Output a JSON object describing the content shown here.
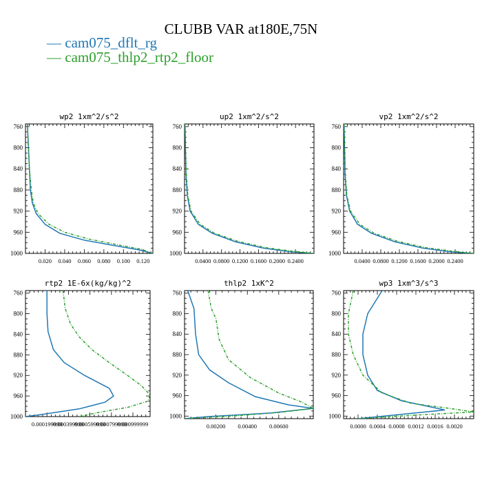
{
  "title": "CLUBB VAR at180E,75N",
  "legend": [
    {
      "label": "cam075_dflt_rg",
      "color": "#1f77b4"
    },
    {
      "label": "cam075_thlp2_rtp2_floor",
      "color": "#2ca02c"
    }
  ],
  "chart_data": [
    {
      "type": "line",
      "title": "wp2   1xm^2/s^2",
      "ylim": [
        1000,
        755
      ],
      "xlim": [
        0,
        0.13
      ],
      "yticks": [
        760,
        800,
        840,
        880,
        920,
        960,
        1000
      ],
      "xticks": [
        0.02,
        0.04,
        0.06,
        0.08,
        0.1,
        0.12
      ],
      "xtick_labels": [
        "0.020",
        "0.040",
        "0.060",
        "0.080",
        "0.100",
        "0.120"
      ],
      "series": [
        {
          "name": "cam075_dflt_rg",
          "points": [
            [
              0.002,
              755
            ],
            [
              0.003,
              800
            ],
            [
              0.004,
              840
            ],
            [
              0.005,
              880
            ],
            [
              0.007,
              905
            ],
            [
              0.011,
              925
            ],
            [
              0.02,
              945
            ],
            [
              0.035,
              962
            ],
            [
              0.06,
              975
            ],
            [
              0.09,
              985
            ],
            [
              0.115,
              993
            ],
            [
              0.13,
              1000
            ]
          ]
        },
        {
          "name": "cam075_thlp2_rtp2_floor",
          "points": [
            [
              0.002,
              755
            ],
            [
              0.003,
              800
            ],
            [
              0.004,
              840
            ],
            [
              0.006,
              880
            ],
            [
              0.008,
              905
            ],
            [
              0.013,
              925
            ],
            [
              0.024,
              945
            ],
            [
              0.04,
              960
            ],
            [
              0.065,
              973
            ],
            [
              0.095,
              984
            ],
            [
              0.118,
              992
            ],
            [
              0.13,
              1000
            ]
          ]
        }
      ]
    },
    {
      "type": "line",
      "title": "up2   1xm^2/s^2",
      "ylim": [
        1000,
        755
      ],
      "xlim": [
        0,
        0.28
      ],
      "yticks": [
        760,
        800,
        840,
        880,
        920,
        960,
        1000
      ],
      "xticks": [
        0.04,
        0.08,
        0.12,
        0.16,
        0.2,
        0.24
      ],
      "xtick_labels": [
        "0.0400",
        "0.0800",
        "0.1200",
        "0.1600",
        "0.2000",
        "0.2400"
      ],
      "series": [
        {
          "name": "cam075_dflt_rg",
          "points": [
            [
              0.001,
              755
            ],
            [
              0.002,
              800
            ],
            [
              0.003,
              850
            ],
            [
              0.006,
              890
            ],
            [
              0.012,
              920
            ],
            [
              0.03,
              945
            ],
            [
              0.06,
              962
            ],
            [
              0.11,
              978
            ],
            [
              0.17,
              990
            ],
            [
              0.23,
              997
            ],
            [
              0.28,
              1000
            ]
          ]
        },
        {
          "name": "cam075_thlp2_rtp2_floor",
          "points": [
            [
              0.001,
              755
            ],
            [
              0.002,
              800
            ],
            [
              0.004,
              850
            ],
            [
              0.007,
              890
            ],
            [
              0.014,
              920
            ],
            [
              0.034,
              945
            ],
            [
              0.065,
              962
            ],
            [
              0.115,
              977
            ],
            [
              0.175,
              989
            ],
            [
              0.235,
              996
            ],
            [
              0.28,
              1000
            ]
          ]
        }
      ]
    },
    {
      "type": "line",
      "title": "vp2   1xm^2/s^2",
      "ylim": [
        1000,
        755
      ],
      "xlim": [
        0,
        0.28
      ],
      "yticks": [
        760,
        800,
        840,
        880,
        920,
        960,
        1000
      ],
      "xticks": [
        0.04,
        0.08,
        0.12,
        0.16,
        0.2,
        0.24
      ],
      "xtick_labels": [
        "0.0400",
        "0.0800",
        "0.1200",
        "0.1600",
        "0.2000",
        "0.2400"
      ],
      "series": [
        {
          "name": "cam075_dflt_rg",
          "points": [
            [
              0.001,
              755
            ],
            [
              0.002,
              800
            ],
            [
              0.003,
              850
            ],
            [
              0.006,
              890
            ],
            [
              0.013,
              920
            ],
            [
              0.03,
              945
            ],
            [
              0.06,
              962
            ],
            [
              0.11,
              978
            ],
            [
              0.17,
              990
            ],
            [
              0.23,
              997
            ],
            [
              0.28,
              1000
            ]
          ]
        },
        {
          "name": "cam075_thlp2_rtp2_floor",
          "points": [
            [
              0.001,
              755
            ],
            [
              0.002,
              800
            ],
            [
              0.004,
              850
            ],
            [
              0.007,
              890
            ],
            [
              0.015,
              920
            ],
            [
              0.035,
              945
            ],
            [
              0.066,
              962
            ],
            [
              0.116,
              977
            ],
            [
              0.176,
              989
            ],
            [
              0.236,
              996
            ],
            [
              0.28,
              1000
            ]
          ]
        }
      ]
    },
    {
      "type": "line",
      "title": "rtp2   1E-6x(kg/kg)^2",
      "ylim": [
        1000,
        755
      ],
      "xlim": [
        0,
        0.00116
      ],
      "yticks": [
        760,
        800,
        840,
        880,
        920,
        960,
        1000
      ],
      "xticks": [
        0.0002,
        0.0004,
        0.0006,
        0.0008,
        0.001
      ],
      "xtick_labels": [
        "0.000199999",
        "0.000399999",
        "0.000599999",
        "0.000799999",
        "0.000999999"
      ],
      "series": [
        {
          "name": "cam075_dflt_rg",
          "points": [
            [
              0.0002,
              755
            ],
            [
              0.0002,
              800
            ],
            [
              0.00021,
              835
            ],
            [
              0.00026,
              870
            ],
            [
              0.00036,
              895
            ],
            [
              0.00055,
              920
            ],
            [
              0.00078,
              945
            ],
            [
              0.00082,
              960
            ],
            [
              0.00074,
              972
            ],
            [
              0.0005,
              985
            ],
            [
              0.00015,
              996
            ],
            [
              0.0,
              1000
            ]
          ]
        },
        {
          "name": "cam075_thlp2_rtp2_floor",
          "points": [
            [
              0.00035,
              755
            ],
            [
              0.00037,
              790
            ],
            [
              0.00042,
              820
            ],
            [
              0.0005,
              845
            ],
            [
              0.00062,
              870
            ],
            [
              0.00078,
              895
            ],
            [
              0.00095,
              920
            ],
            [
              0.00108,
              940
            ],
            [
              0.00116,
              958
            ],
            [
              0.00114,
              970
            ],
            [
              0.00095,
              982
            ],
            [
              0.00068,
              992
            ],
            [
              0.0005,
              1000
            ]
          ]
        }
      ]
    },
    {
      "type": "line",
      "title": "thlp2   1xK^2",
      "ylim": [
        1005,
        755
      ],
      "xlim": [
        0,
        0.0082
      ],
      "yticks": [
        760,
        800,
        840,
        880,
        920,
        960,
        1000
      ],
      "xticks": [
        0.002,
        0.004,
        0.006
      ],
      "xtick_labels": [
        "0.00200",
        "0.00400",
        "0.00600"
      ],
      "series": [
        {
          "name": "cam075_dflt_rg",
          "points": [
            [
              0.0002,
              755
            ],
            [
              0.0006,
              790
            ],
            [
              0.0007,
              840
            ],
            [
              0.0009,
              880
            ],
            [
              0.0016,
              910
            ],
            [
              0.0028,
              935
            ],
            [
              0.0045,
              962
            ],
            [
              0.0066,
              978
            ],
            [
              0.0082,
              985
            ],
            [
              0.0055,
              994
            ],
            [
              0.0015,
              1001
            ],
            [
              0.0,
              1005
            ]
          ]
        },
        {
          "name": "cam075_thlp2_rtp2_floor",
          "points": [
            [
              0.0015,
              755
            ],
            [
              0.0017,
              790
            ],
            [
              0.002,
              810
            ],
            [
              0.0022,
              850
            ],
            [
              0.0028,
              890
            ],
            [
              0.0042,
              925
            ],
            [
              0.006,
              955
            ],
            [
              0.0074,
              972
            ],
            [
              0.0082,
              985
            ],
            [
              0.006,
              993
            ],
            [
              0.003,
              1000
            ],
            [
              0.0,
              1005
            ]
          ]
        }
      ]
    },
    {
      "type": "line",
      "title": "wp3   1xm^3/s^3",
      "ylim": [
        1005,
        755
      ],
      "xlim": [
        -0.0003,
        0.0024
      ],
      "yticks": [
        760,
        800,
        840,
        880,
        920,
        960,
        1000
      ],
      "xticks": [
        0.0,
        0.0004,
        0.0008,
        0.0012,
        0.0016,
        0.002
      ],
      "xtick_labels": [
        "0.0000",
        "0.0004",
        "0.0008",
        "0.0012",
        "0.0016",
        "0.0020"
      ],
      "series": [
        {
          "name": "cam075_dflt_rg",
          "points": [
            [
              0.0005,
              755
            ],
            [
              0.0002,
              800
            ],
            [
              0.0001,
              840
            ],
            [
              0.0001,
              880
            ],
            [
              0.0002,
              920
            ],
            [
              0.0004,
              950
            ],
            [
              0.0009,
              970
            ],
            [
              0.0015,
              982
            ],
            [
              0.0018,
              988
            ],
            [
              0.0014,
              992
            ],
            [
              0.0,
              1005
            ]
          ]
        },
        {
          "name": "cam075_thlp2_rtp2_floor",
          "points": [
            [
              -0.0001,
              755
            ],
            [
              -0.0002,
              800
            ],
            [
              -0.0002,
              840
            ],
            [
              -0.0001,
              880
            ],
            [
              0.0001,
              920
            ],
            [
              0.0005,
              955
            ],
            [
              0.0011,
              975
            ],
            [
              0.0019,
              985
            ],
            [
              0.0024,
              992
            ],
            [
              0.0012,
              998
            ],
            [
              0.0,
              1005
            ]
          ]
        }
      ]
    }
  ]
}
